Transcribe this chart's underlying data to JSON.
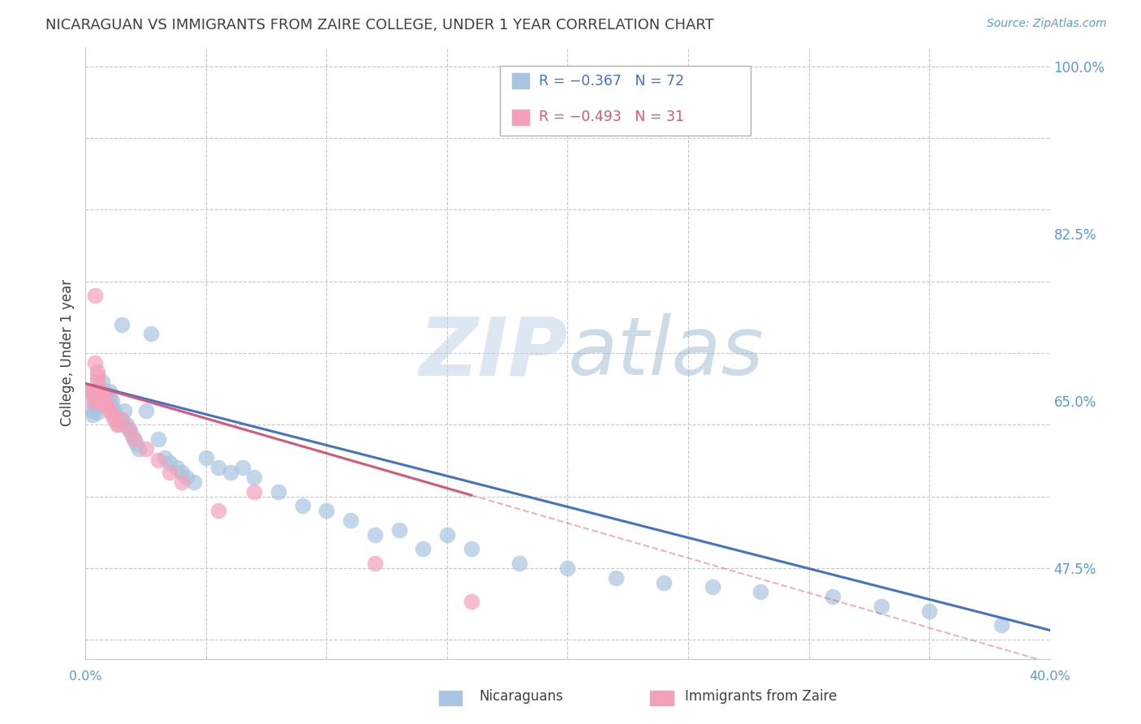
{
  "title": "NICARAGUAN VS IMMIGRANTS FROM ZAIRE COLLEGE, UNDER 1 YEAR CORRELATION CHART",
  "source": "Source: ZipAtlas.com",
  "ylabel": "College, Under 1 year",
  "xlim": [
    0.0,
    0.4
  ],
  "ylim": [
    0.38,
    1.02
  ],
  "ytick_positions": [
    0.4,
    0.475,
    0.55,
    0.625,
    0.7,
    0.775,
    0.85,
    0.925,
    1.0
  ],
  "ytick_labels_right": [
    "",
    "47.5%",
    "",
    "",
    "65.0%",
    "",
    "82.5%",
    "",
    "100.0%"
  ],
  "grid_color": "#c8c8c8",
  "background_color": "#ffffff",
  "blue_color": "#a8c4e0",
  "pink_color": "#f4a0b8",
  "blue_line_color": "#4472c4",
  "pink_line_color": "#d45878",
  "title_color": "#404040",
  "axis_label_color": "#404040",
  "tick_color": "#5b9bd5",
  "legend_text1": "R = −0.367   N = 72",
  "legend_text2": "R = −0.493   N = 31",
  "legend_color1": "#4472c4",
  "legend_color2": "#d45878",
  "watermark_zip_color": "#c0d4ea",
  "watermark_atlas_color": "#90b0d0",
  "nic_x": [
    0.002,
    0.003,
    0.003,
    0.004,
    0.004,
    0.004,
    0.005,
    0.005,
    0.005,
    0.005,
    0.005,
    0.006,
    0.006,
    0.006,
    0.007,
    0.007,
    0.007,
    0.008,
    0.008,
    0.009,
    0.009,
    0.01,
    0.01,
    0.01,
    0.011,
    0.011,
    0.012,
    0.012,
    0.013,
    0.014,
    0.015,
    0.015,
    0.016,
    0.017,
    0.018,
    0.019,
    0.02,
    0.021,
    0.022,
    0.025,
    0.027,
    0.03,
    0.033,
    0.035,
    0.038,
    0.04,
    0.042,
    0.045,
    0.05,
    0.055,
    0.06,
    0.065,
    0.07,
    0.08,
    0.09,
    0.1,
    0.11,
    0.12,
    0.13,
    0.14,
    0.15,
    0.16,
    0.18,
    0.2,
    0.22,
    0.24,
    0.26,
    0.28,
    0.31,
    0.33,
    0.35,
    0.38
  ],
  "nic_y": [
    0.66,
    0.64,
    0.635,
    0.66,
    0.65,
    0.645,
    0.65,
    0.655,
    0.648,
    0.643,
    0.638,
    0.66,
    0.65,
    0.645,
    0.67,
    0.66,
    0.655,
    0.66,
    0.65,
    0.655,
    0.648,
    0.66,
    0.655,
    0.648,
    0.65,
    0.643,
    0.64,
    0.635,
    0.63,
    0.625,
    0.73,
    0.63,
    0.64,
    0.625,
    0.62,
    0.615,
    0.61,
    0.605,
    0.6,
    0.64,
    0.72,
    0.61,
    0.59,
    0.585,
    0.58,
    0.575,
    0.57,
    0.565,
    0.59,
    0.58,
    0.575,
    0.58,
    0.57,
    0.555,
    0.54,
    0.535,
    0.525,
    0.51,
    0.515,
    0.495,
    0.51,
    0.495,
    0.48,
    0.475,
    0.465,
    0.46,
    0.455,
    0.45,
    0.445,
    0.435,
    0.43,
    0.415
  ],
  "zaire_x": [
    0.002,
    0.003,
    0.003,
    0.004,
    0.004,
    0.005,
    0.005,
    0.005,
    0.006,
    0.006,
    0.006,
    0.007,
    0.007,
    0.008,
    0.008,
    0.009,
    0.01,
    0.011,
    0.012,
    0.013,
    0.015,
    0.018,
    0.02,
    0.025,
    0.03,
    0.035,
    0.04,
    0.055,
    0.07,
    0.12,
    0.16
  ],
  "zaire_y": [
    0.66,
    0.66,
    0.65,
    0.76,
    0.69,
    0.68,
    0.675,
    0.67,
    0.66,
    0.655,
    0.648,
    0.66,
    0.65,
    0.655,
    0.648,
    0.645,
    0.64,
    0.635,
    0.63,
    0.625,
    0.63,
    0.62,
    0.61,
    0.6,
    0.588,
    0.575,
    0.565,
    0.535,
    0.555,
    0.48,
    0.44
  ],
  "zaire_line_end_solid": 0.16,
  "zaire_line_end_dash": 0.4,
  "blue_line_intercept": 0.668,
  "blue_line_slope": -0.645,
  "pink_line_intercept": 0.668,
  "pink_line_slope": -0.73
}
